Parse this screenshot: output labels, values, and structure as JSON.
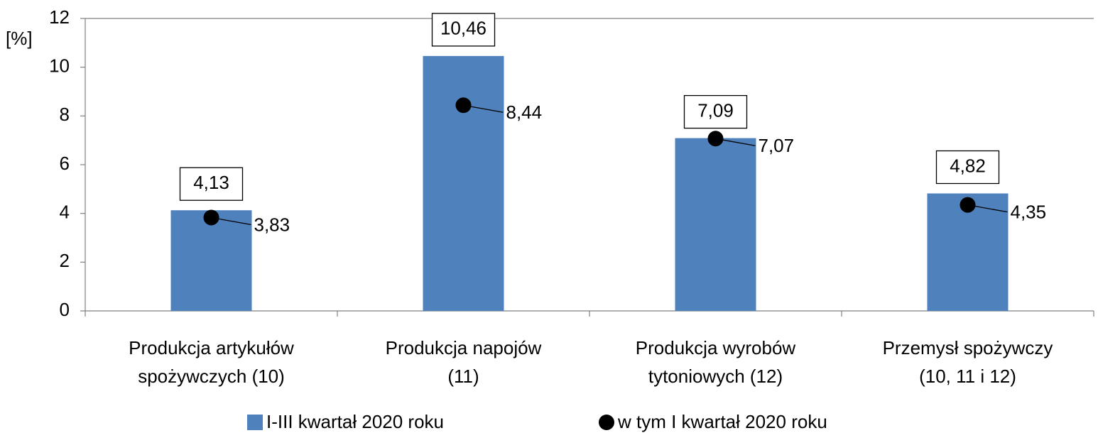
{
  "chart_data": {
    "type": "bar",
    "y_label": "[%]",
    "categories": [
      [
        "Produkcja artykułów",
        "spożywczych (10)"
      ],
      [
        "Produkcja napojów",
        "(11)"
      ],
      [
        "Produkcja wyrobów",
        "tytoniowych (12)"
      ],
      [
        "Przemysł spożywczy",
        "(10, 11 i 12)"
      ]
    ],
    "series": [
      {
        "name": "I-III kwartał 2020 roku",
        "type": "bar",
        "color": "#4f81bd",
        "values": [
          4.13,
          10.46,
          7.09,
          4.82
        ],
        "value_labels": [
          "4,13",
          "10,46",
          "7,09",
          "4,82"
        ]
      },
      {
        "name": "w tym I kwartał 2020 roku",
        "type": "point",
        "color": "#000000",
        "values": [
          3.83,
          8.44,
          7.07,
          4.35
        ],
        "value_labels": [
          "3,83",
          "8,44",
          "7,07",
          "4,35"
        ]
      }
    ],
    "ylim": [
      0,
      12
    ],
    "yticks": [
      0,
      2,
      4,
      6,
      8,
      10,
      12
    ],
    "legend": "bottom"
  }
}
